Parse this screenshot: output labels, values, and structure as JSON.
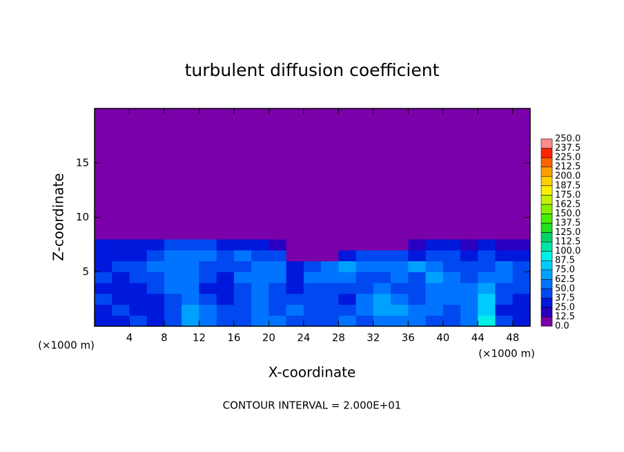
{
  "chart_data": {
    "type": "heatmap",
    "title": "turbulent diffusion coefficient",
    "x_label": "X-coordinate",
    "y_label": "Z-coordinate",
    "x_unit_left": "(×1000 m)",
    "x_unit_right": "(×1000 m)",
    "annotation": "CONTOUR INTERVAL = 2.000E+01",
    "xlim": [
      0,
      50
    ],
    "ylim": [
      0,
      20
    ],
    "xticks": [
      4,
      8,
      12,
      16,
      20,
      24,
      28,
      32,
      36,
      40,
      44,
      48
    ],
    "yticks": [
      5,
      10,
      15
    ],
    "z": [
      [
        30,
        35,
        40,
        35,
        45,
        70,
        60,
        40,
        45,
        50,
        55,
        45,
        40,
        45,
        50,
        40,
        55,
        60,
        50,
        45,
        40,
        55,
        90,
        40,
        35
      ],
      [
        35,
        40,
        35,
        30,
        40,
        65,
        55,
        40,
        40,
        50,
        45,
        50,
        45,
        40,
        45,
        50,
        65,
        70,
        55,
        60,
        45,
        60,
        85,
        35,
        30
      ],
      [
        40,
        35,
        30,
        35,
        45,
        60,
        40,
        35,
        40,
        55,
        40,
        45,
        40,
        45,
        35,
        50,
        70,
        60,
        45,
        55,
        50,
        55,
        75,
        40,
        35
      ],
      [
        35,
        30,
        35,
        40,
        50,
        55,
        35,
        30,
        45,
        50,
        45,
        35,
        45,
        40,
        40,
        45,
        50,
        45,
        40,
        60,
        55,
        50,
        65,
        45,
        40
      ],
      [
        40,
        35,
        40,
        45,
        55,
        50,
        40,
        35,
        50,
        55,
        50,
        30,
        50,
        55,
        50,
        45,
        40,
        50,
        45,
        70,
        60,
        45,
        55,
        50,
        45
      ],
      [
        35,
        40,
        45,
        50,
        60,
        55,
        45,
        40,
        45,
        55,
        60,
        25,
        40,
        55,
        65,
        60,
        55,
        60,
        70,
        55,
        45,
        40,
        45,
        50,
        40
      ],
      [
        30,
        35,
        35,
        40,
        50,
        60,
        55,
        45,
        50,
        45,
        40,
        0,
        0,
        0,
        30,
        40,
        45,
        40,
        35,
        40,
        45,
        35,
        40,
        35,
        30
      ],
      [
        25,
        30,
        30,
        35,
        40,
        45,
        45,
        35,
        30,
        25,
        15,
        0,
        0,
        0,
        0,
        0,
        0,
        0,
        20,
        25,
        30,
        20,
        25,
        20,
        15
      ],
      [
        0,
        0,
        0,
        0,
        0,
        0,
        0,
        0,
        0,
        0,
        0,
        0,
        0,
        0,
        0,
        0,
        0,
        0,
        0,
        0,
        0,
        0,
        0,
        0,
        0
      ],
      [
        0,
        0,
        0,
        0,
        0,
        0,
        0,
        0,
        0,
        0,
        0,
        0,
        0,
        0,
        0,
        0,
        0,
        0,
        0,
        0,
        0,
        0,
        0,
        0,
        0
      ],
      [
        0,
        0,
        0,
        0,
        0,
        0,
        0,
        0,
        0,
        0,
        0,
        0,
        0,
        0,
        0,
        0,
        0,
        0,
        0,
        0,
        0,
        0,
        0,
        0,
        0
      ],
      [
        0,
        0,
        0,
        0,
        0,
        0,
        0,
        0,
        0,
        0,
        0,
        0,
        0,
        0,
        0,
        0,
        0,
        0,
        0,
        0,
        0,
        0,
        0,
        0,
        0
      ],
      [
        0,
        0,
        0,
        0,
        0,
        0,
        0,
        0,
        0,
        0,
        0,
        0,
        0,
        0,
        0,
        0,
        0,
        0,
        0,
        0,
        0,
        0,
        0,
        0,
        0
      ],
      [
        0,
        0,
        0,
        0,
        0,
        0,
        0,
        0,
        0,
        0,
        0,
        0,
        0,
        0,
        0,
        0,
        0,
        0,
        0,
        0,
        0,
        0,
        0,
        0,
        0
      ],
      [
        0,
        0,
        0,
        0,
        0,
        0,
        0,
        0,
        0,
        0,
        0,
        0,
        0,
        0,
        0,
        0,
        0,
        0,
        0,
        0,
        0,
        0,
        0,
        0,
        0
      ],
      [
        0,
        0,
        0,
        0,
        0,
        0,
        0,
        0,
        0,
        0,
        0,
        0,
        0,
        0,
        0,
        0,
        0,
        0,
        0,
        0,
        0,
        0,
        0,
        0,
        0
      ],
      [
        0,
        0,
        0,
        0,
        0,
        0,
        0,
        0,
        0,
        0,
        0,
        0,
        0,
        0,
        0,
        0,
        0,
        0,
        0,
        0,
        0,
        0,
        0,
        0,
        0
      ],
      [
        0,
        0,
        0,
        0,
        0,
        0,
        0,
        0,
        0,
        0,
        0,
        0,
        0,
        0,
        0,
        0,
        0,
        0,
        0,
        0,
        0,
        0,
        0,
        0,
        0
      ],
      [
        0,
        0,
        0,
        0,
        0,
        0,
        0,
        0,
        0,
        0,
        0,
        0,
        0,
        0,
        0,
        0,
        0,
        0,
        0,
        0,
        0,
        0,
        0,
        0,
        0
      ],
      [
        0,
        0,
        0,
        0,
        0,
        0,
        0,
        0,
        0,
        0,
        0,
        0,
        0,
        0,
        0,
        0,
        0,
        0,
        0,
        0,
        0,
        0,
        0,
        0,
        0
      ]
    ],
    "levels": [
      {
        "value": 0,
        "label": "0.0"
      },
      {
        "value": 12.5,
        "label": "12.5"
      },
      {
        "value": 25,
        "label": "25.0"
      },
      {
        "value": 37.5,
        "label": "37.5"
      },
      {
        "value": 50,
        "label": "50.0"
      },
      {
        "value": 62.5,
        "label": "62.5"
      },
      {
        "value": 75,
        "label": "75.0"
      },
      {
        "value": 87.5,
        "label": "87.5"
      },
      {
        "value": 100,
        "label": "100.0"
      },
      {
        "value": 112.5,
        "label": "112.5"
      },
      {
        "value": 125,
        "label": "125.0"
      },
      {
        "value": 137.5,
        "label": "137.5"
      },
      {
        "value": 150,
        "label": "150.0"
      },
      {
        "value": 162.5,
        "label": "162.5"
      },
      {
        "value": 175,
        "label": "175.0"
      },
      {
        "value": 187.5,
        "label": "187.5"
      },
      {
        "value": 200,
        "label": "200.0"
      },
      {
        "value": 212.5,
        "label": "212.5"
      },
      {
        "value": 225,
        "label": "225.0"
      },
      {
        "value": 237.5,
        "label": "237.5"
      },
      {
        "value": 250,
        "label": "250.0"
      }
    ],
    "colors": [
      "#7a00aa",
      "#2a00c0",
      "#0018dc",
      "#0048f0",
      "#0074ff",
      "#00a0ff",
      "#00ccff",
      "#00f0e8",
      "#00e4a8",
      "#00d468",
      "#20e020",
      "#48f000",
      "#88f000",
      "#c4f000",
      "#f4f000",
      "#ffd000",
      "#ffa000",
      "#ff6400",
      "#ff2400",
      "#ff8c8c"
    ]
  }
}
